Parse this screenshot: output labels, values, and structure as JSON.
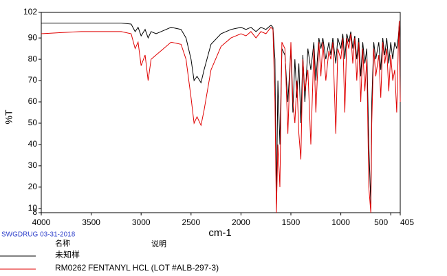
{
  "chart_data": {
    "type": "line",
    "x_label": "cm-1",
    "y_label": "%T",
    "source": "SWGDRUG 03-31-2018",
    "legend_headers": [
      "名称",
      "说明"
    ],
    "xlim": [
      4000,
      405
    ],
    "xticks": [
      4000,
      3500,
      3000,
      2500,
      2000,
      1500,
      1000,
      500,
      405
    ],
    "ylim": [
      8,
      102
    ],
    "yticks": [
      8,
      10,
      20,
      30,
      40,
      50,
      60,
      70,
      80,
      90,
      102
    ],
    "x": [
      4000,
      3800,
      3600,
      3400,
      3200,
      3100,
      3060,
      3030,
      3000,
      2960,
      2930,
      2900,
      2850,
      2800,
      2700,
      2600,
      2550,
      2500,
      2470,
      2440,
      2400,
      2370,
      2300,
      2200,
      2100,
      2000,
      1950,
      1900,
      1850,
      1800,
      1750,
      1700,
      1680,
      1660,
      1645,
      1630,
      1610,
      1590,
      1560,
      1530,
      1500,
      1480,
      1460,
      1440,
      1420,
      1400,
      1380,
      1360,
      1330,
      1300,
      1270,
      1250,
      1220,
      1200,
      1180,
      1150,
      1120,
      1100,
      1080,
      1050,
      1030,
      1000,
      980,
      960,
      940,
      920,
      900,
      880,
      860,
      840,
      820,
      800,
      780,
      760,
      740,
      720,
      700,
      690,
      670,
      650,
      620,
      600,
      580,
      560,
      540,
      520,
      500,
      480,
      460,
      440,
      425,
      415,
      405
    ],
    "series": [
      {
        "name": "未知样",
        "color": "#000000",
        "values": [
          97,
          97,
          97,
          97,
          97,
          96.5,
          93,
          95,
          91,
          94,
          90,
          93,
          92,
          93,
          95,
          94,
          90,
          80,
          70,
          72,
          69,
          75,
          87,
          92,
          94,
          95,
          94,
          95,
          93,
          95,
          94,
          96,
          95,
          80,
          12,
          70,
          40,
          85,
          82,
          60,
          85,
          55,
          80,
          62,
          78,
          50,
          82,
          60,
          85,
          75,
          88,
          70,
          90,
          85,
          90,
          80,
          88,
          82,
          90,
          78,
          90,
          85,
          92,
          80,
          92,
          88,
          93,
          85,
          91,
          80,
          90,
          72,
          88,
          78,
          85,
          40,
          12,
          60,
          88,
          80,
          88,
          75,
          90,
          82,
          90,
          78,
          88,
          80,
          88,
          85,
          90,
          96,
          90
        ]
      },
      {
        "name": "RM0262",
        "description": "FENTANYL HCL (LOT #ALB-297-3)",
        "color": "#e00000",
        "values": [
          92,
          92.5,
          93,
          93,
          93,
          92,
          85,
          88,
          77,
          82,
          70,
          80,
          82,
          84,
          88,
          87,
          80,
          62,
          50,
          53,
          49,
          56,
          75,
          86,
          90,
          92,
          91,
          93,
          90,
          93,
          92,
          95,
          94,
          60,
          8,
          40,
          20,
          88,
          85,
          45,
          88,
          60,
          50,
          70,
          45,
          33,
          80,
          65,
          75,
          40,
          85,
          55,
          88,
          72,
          88,
          70,
          84,
          80,
          88,
          45,
          85,
          80,
          90,
          55,
          90,
          85,
          92,
          78,
          90,
          70,
          88,
          60,
          85,
          65,
          80,
          20,
          8,
          50,
          85,
          72,
          82,
          62,
          88,
          78,
          85,
          65,
          82,
          70,
          75,
          55,
          85,
          98,
          60
        ]
      }
    ]
  }
}
